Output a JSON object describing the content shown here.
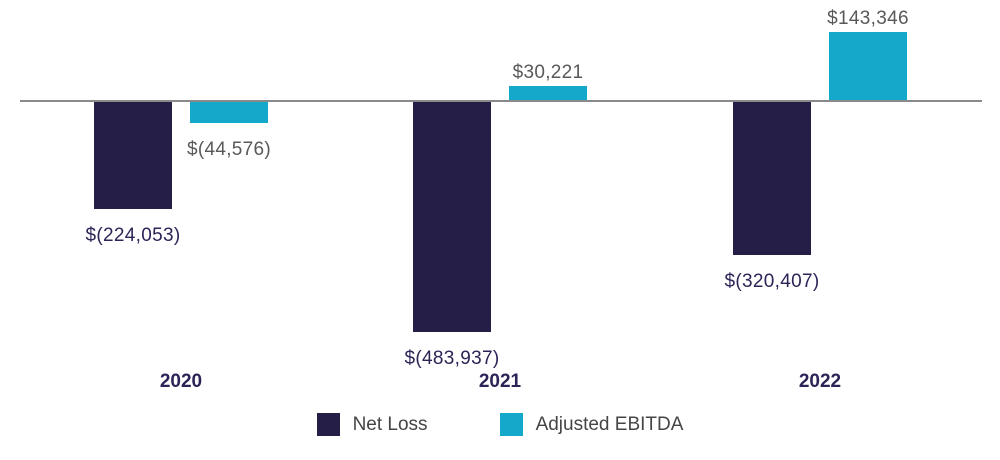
{
  "chart_data": {
    "type": "bar",
    "categories": [
      "2020",
      "2021",
      "2022"
    ],
    "series": [
      {
        "name": "Net Loss",
        "color": "#251f48",
        "label_color": "#2b2456",
        "values": [
          -224053,
          -483937,
          -320407
        ],
        "labels": [
          "$(224,053)",
          "$(483,937)",
          "$(320,407)"
        ]
      },
      {
        "name": "Adjusted EBITDA",
        "color": "#14a8cb",
        "label_color": "#58595b",
        "values": [
          -44576,
          30221,
          143346
        ],
        "labels": [
          "$(44,576)",
          "$30,221",
          "$143,346"
        ]
      }
    ],
    "title": "",
    "xlabel": "",
    "ylabel": "",
    "ylim": [
      -500000,
      160000
    ],
    "grid": false,
    "legend_position": "bottom",
    "baseline": 0
  },
  "colors": {
    "axis_line": "#8a8a8a",
    "year_label": "#2b2456",
    "legend_text": "#454547",
    "background": "#ffffff"
  }
}
